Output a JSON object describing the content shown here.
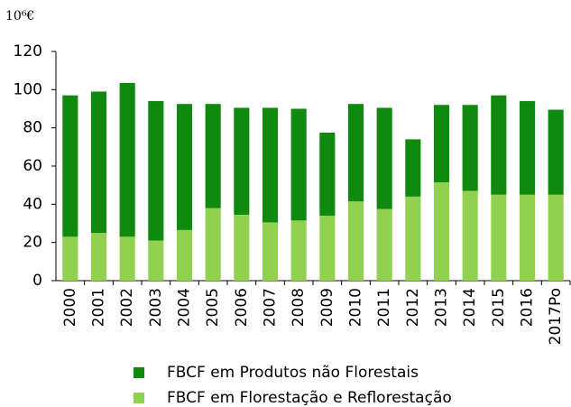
{
  "chart_data": {
    "type": "stacked-bar",
    "unit": "10⁶€",
    "categories": [
      "2000",
      "2001",
      "2002",
      "2003",
      "2004",
      "2005",
      "2006",
      "2007",
      "2008",
      "2009",
      "2010",
      "2011",
      "2012",
      "2013",
      "2014",
      "2015",
      "2016",
      "2017Po"
    ],
    "series": [
      {
        "name": "FBCF em Produtos não Florestais",
        "color": "#0f8a0f",
        "values": [
          74,
          74,
          80.5,
          73,
          66,
          54.5,
          56,
          60,
          58.5,
          43.5,
          51,
          53,
          30,
          40.5,
          45,
          52,
          49,
          44.5
        ]
      },
      {
        "name": "FBCF em Florestação e Reflorestação",
        "color": "#92d050",
        "values": [
          23,
          25,
          23,
          21,
          26.5,
          38,
          34.5,
          30.5,
          31.5,
          34,
          41.5,
          37.5,
          44,
          51.5,
          47,
          45,
          45,
          45
        ]
      }
    ],
    "ylim": [
      0,
      120
    ],
    "yticks": [
      0,
      20,
      40,
      60,
      80,
      100,
      120
    ],
    "grid": false
  }
}
